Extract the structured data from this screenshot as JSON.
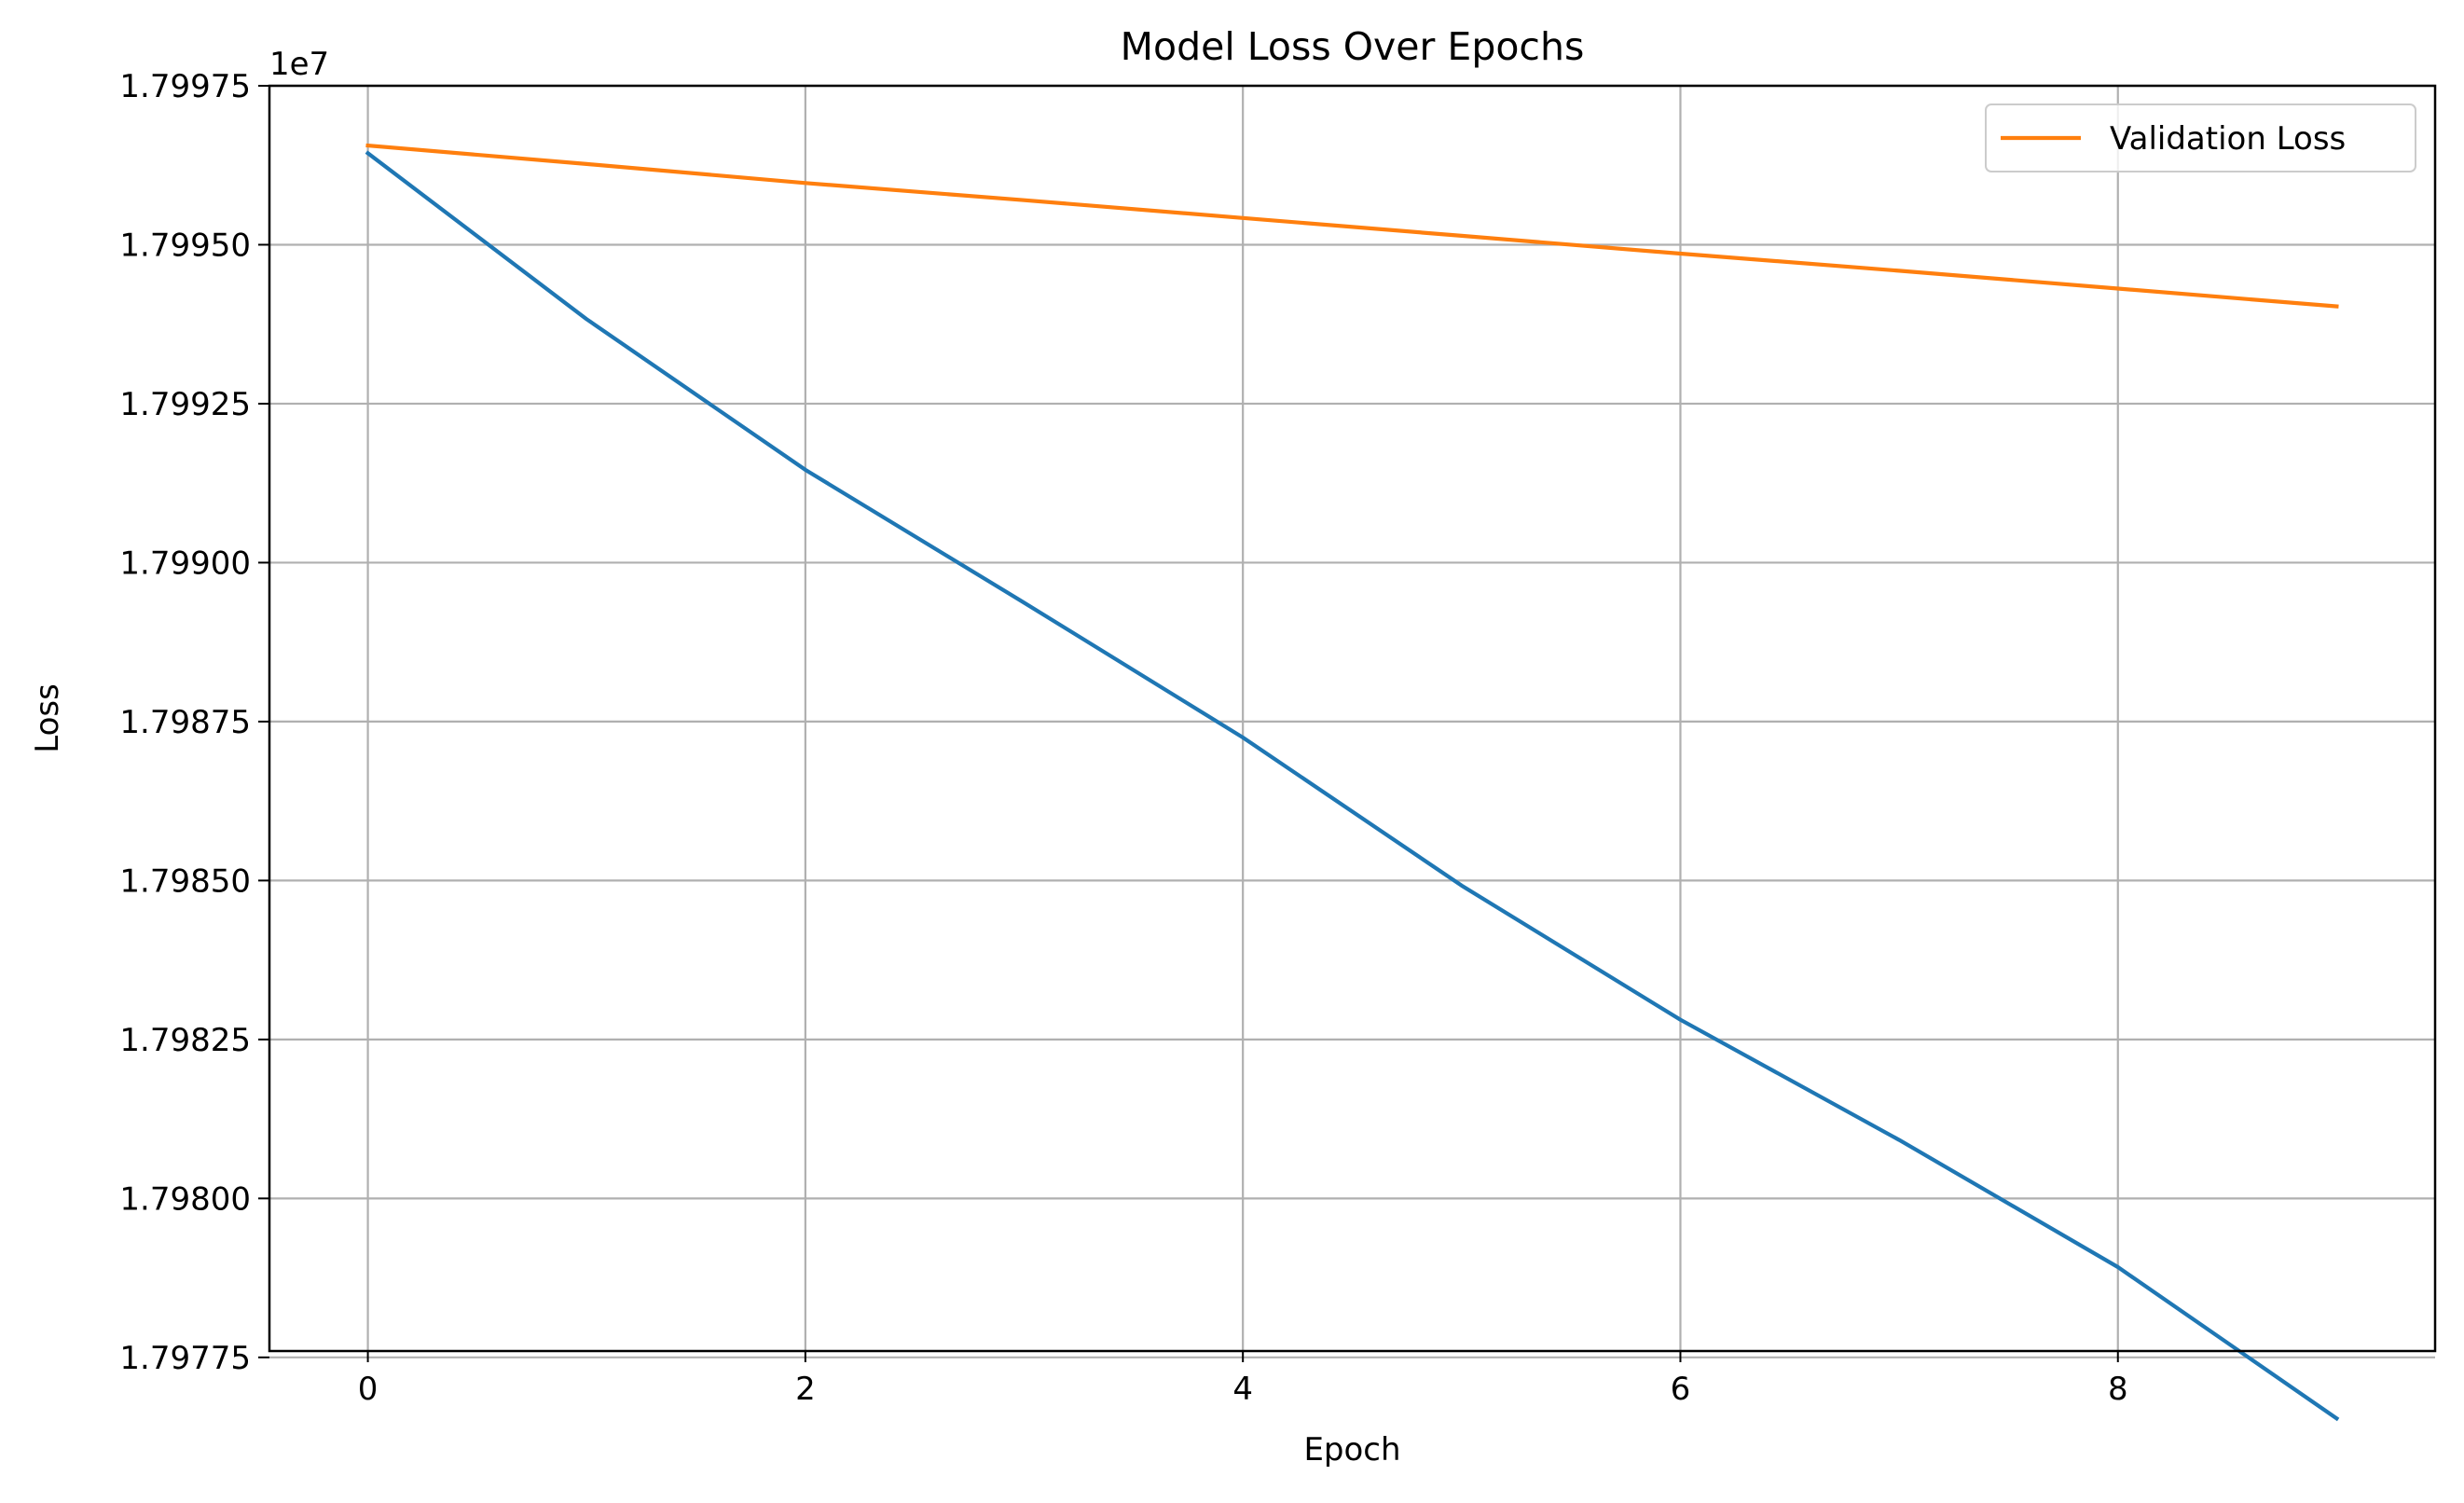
{
  "chart_data": {
    "type": "line",
    "title": "Model Loss Over Epochs",
    "xlabel": "Epoch",
    "ylabel": "Loss",
    "y_offset_label": "1e7",
    "x": [
      0,
      1,
      2,
      3,
      4,
      5,
      6,
      7,
      8,
      9
    ],
    "xlim": [
      -0.45,
      9.45
    ],
    "ylim": [
      17977600,
      17997500
    ],
    "x_ticks": [
      0,
      2,
      4,
      6,
      8
    ],
    "x_tick_labels": [
      "0",
      "2",
      "4",
      "6",
      "8"
    ],
    "y_ticks": [
      17977500,
      17980000,
      17982500,
      17985000,
      17987500,
      17990000,
      17992500,
      17995000,
      17997500
    ],
    "y_tick_labels": [
      "1.79775",
      "1.79800",
      "1.79825",
      "1.79850",
      "1.79875",
      "1.79900",
      "1.79925",
      "1.79950",
      "1.79975"
    ],
    "grid": true,
    "legend_position": "upper-right",
    "series": [
      {
        "key": "train",
        "color": "#1f77b4",
        "in_legend": false,
        "values": [
          17996440,
          17993830,
          17991460,
          17989370,
          17987250,
          17984920,
          17982810,
          17980920,
          17978920,
          17976540
        ]
      },
      {
        "key": "validation",
        "name": "Validation Loss",
        "color": "#ff7f0e",
        "in_legend": true,
        "values": [
          17996560,
          17996270,
          17995970,
          17995700,
          17995420,
          17995140,
          17994860,
          17994590,
          17994310,
          17994030
        ]
      }
    ]
  }
}
